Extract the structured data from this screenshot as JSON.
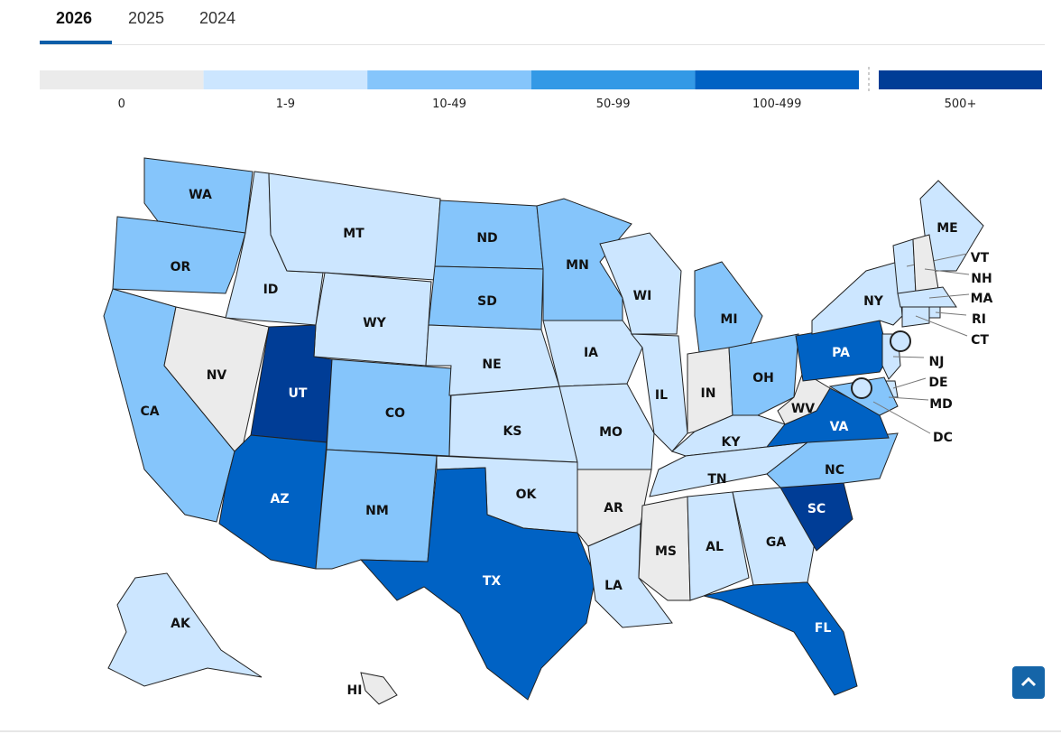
{
  "tabs": [
    "2026",
    "2025",
    "2024"
  ],
  "active_tab": 0,
  "legend": [
    {
      "label": "0",
      "color": "#ebebeb"
    },
    {
      "label": "1-9",
      "color": "#cce6ff"
    },
    {
      "label": "10-49",
      "color": "#85c5fb"
    },
    {
      "label": "50-99",
      "color": "#3399e6"
    },
    {
      "label": "100-499",
      "color": "#0062c4"
    },
    {
      "label": "500+",
      "color": "#003d96"
    }
  ],
  "states": [
    {
      "label": "WA",
      "bin": 2
    },
    {
      "label": "OR",
      "bin": 2
    },
    {
      "label": "CA",
      "bin": 2
    },
    {
      "label": "NV",
      "bin": 0
    },
    {
      "label": "ID",
      "bin": 1
    },
    {
      "label": "MT",
      "bin": 1
    },
    {
      "label": "WY",
      "bin": 1
    },
    {
      "label": "UT",
      "bin": 5
    },
    {
      "label": "AZ",
      "bin": 4
    },
    {
      "label": "CO",
      "bin": 2
    },
    {
      "label": "NM",
      "bin": 2
    },
    {
      "label": "ND",
      "bin": 2
    },
    {
      "label": "SD",
      "bin": 2
    },
    {
      "label": "NE",
      "bin": 1
    },
    {
      "label": "KS",
      "bin": 1
    },
    {
      "label": "OK",
      "bin": 1
    },
    {
      "label": "TX",
      "bin": 4
    },
    {
      "label": "MN",
      "bin": 2
    },
    {
      "label": "IA",
      "bin": 1
    },
    {
      "label": "MO",
      "bin": 1
    },
    {
      "label": "AR",
      "bin": 0
    },
    {
      "label": "LA",
      "bin": 1
    },
    {
      "label": "WI",
      "bin": 1
    },
    {
      "label": "IL",
      "bin": 1
    },
    {
      "label": "MI",
      "bin": 2
    },
    {
      "label": "IN",
      "bin": 0
    },
    {
      "label": "OH",
      "bin": 2
    },
    {
      "label": "KY",
      "bin": 1
    },
    {
      "label": "TN",
      "bin": 1
    },
    {
      "label": "MS",
      "bin": 0
    },
    {
      "label": "AL",
      "bin": 1
    },
    {
      "label": "GA",
      "bin": 1
    },
    {
      "label": "FL",
      "bin": 4
    },
    {
      "label": "SC",
      "bin": 5
    },
    {
      "label": "NC",
      "bin": 2
    },
    {
      "label": "VA",
      "bin": 4
    },
    {
      "label": "WV",
      "bin": 0
    },
    {
      "label": "PA",
      "bin": 4
    },
    {
      "label": "NY",
      "bin": 1
    },
    {
      "label": "ME",
      "bin": 1
    },
    {
      "label": "VT",
      "bin": 1
    },
    {
      "label": "NH",
      "bin": 0
    },
    {
      "label": "MA",
      "bin": 1
    },
    {
      "label": "RI",
      "bin": 1
    },
    {
      "label": "CT",
      "bin": 1
    },
    {
      "label": "NJ",
      "bin": 1
    },
    {
      "label": "DE",
      "bin": 1
    },
    {
      "label": "MD",
      "bin": 2
    },
    {
      "label": "DC",
      "bin": 1
    },
    {
      "label": "AK",
      "bin": 1
    },
    {
      "label": "HI",
      "bin": 0
    }
  ]
}
